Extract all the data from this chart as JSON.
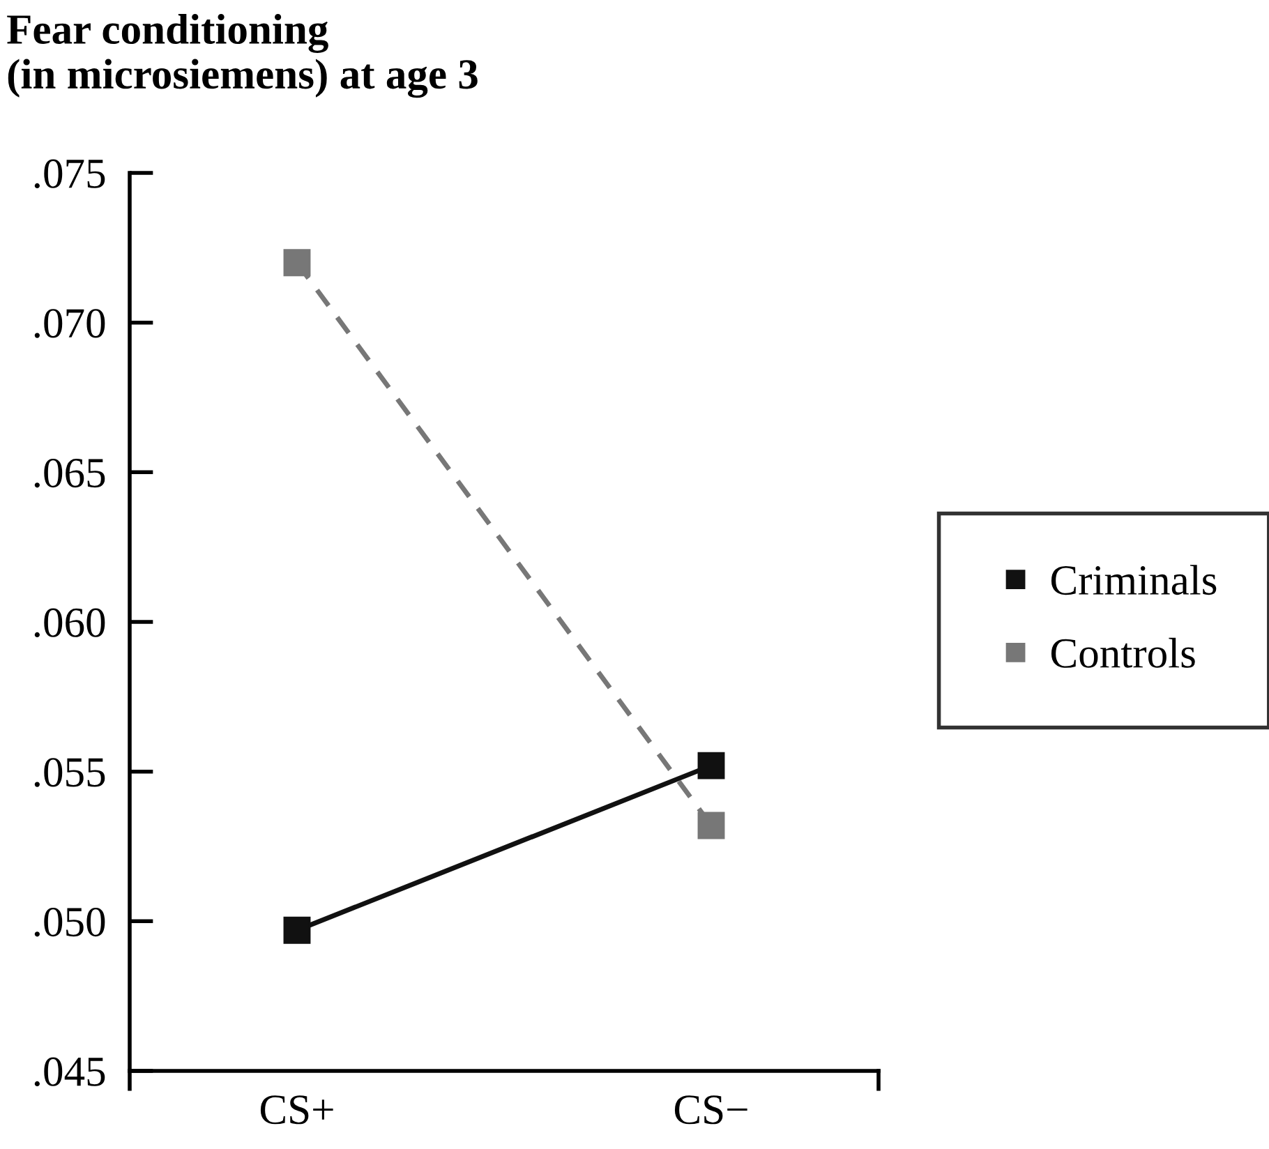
{
  "chart_data": {
    "type": "line",
    "ylabel": "Fear conditioning\n(in microsiemens) at age 3",
    "categories": [
      "CS+",
      "CS−"
    ],
    "series": [
      {
        "name": "Criminals",
        "color": "#111111",
        "values": [
          0.0497,
          0.0552
        ],
        "line_style": "solid"
      },
      {
        "name": "Controls",
        "color": "#777777",
        "values": [
          0.072,
          0.0532
        ],
        "line_style": "dashed"
      }
    ],
    "ylim": [
      0.045,
      0.075
    ],
    "yticks": [
      {
        "value": 0.045,
        "label": ".045"
      },
      {
        "value": 0.05,
        "label": ".050"
      },
      {
        "value": 0.055,
        "label": ".055"
      },
      {
        "value": 0.06,
        "label": ".060"
      },
      {
        "value": 0.065,
        "label": ".065"
      },
      {
        "value": 0.07,
        "label": ".070"
      },
      {
        "value": 0.075,
        "label": ".075"
      }
    ],
    "marker": "square",
    "legend": "right",
    "grid": false
  }
}
